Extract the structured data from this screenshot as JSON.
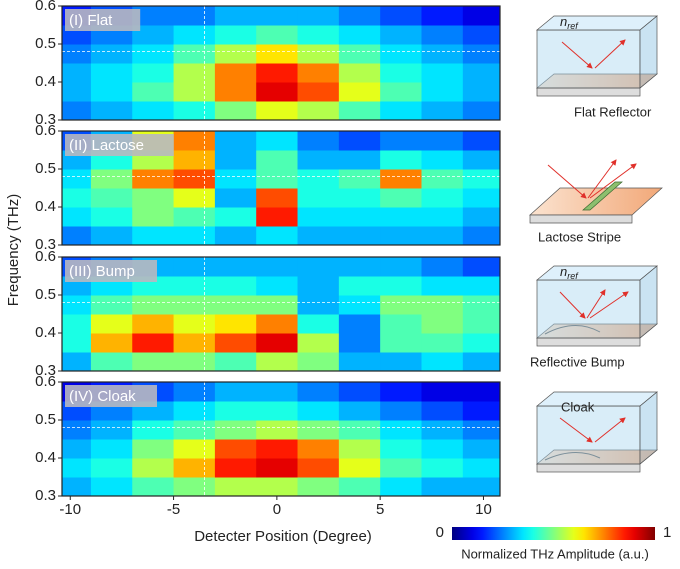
{
  "chart_data": [
    {
      "type": "heatmap",
      "title": "(I) Flat",
      "ylabel": "Frequency (THz)",
      "x": [
        -10,
        -8,
        -6,
        -4,
        -2,
        0,
        2,
        4,
        6,
        8,
        10
      ],
      "y": [
        0.325,
        0.375,
        0.425,
        0.475,
        0.525,
        0.575
      ],
      "z": [
        [
          0.25,
          0.3,
          0.35,
          0.4,
          0.5,
          0.6,
          0.55,
          0.45,
          0.35,
          0.3,
          0.25
        ],
        [
          0.3,
          0.35,
          0.45,
          0.55,
          0.75,
          0.9,
          0.8,
          0.6,
          0.45,
          0.35,
          0.3
        ],
        [
          0.3,
          0.35,
          0.4,
          0.55,
          0.75,
          0.85,
          0.75,
          0.55,
          0.4,
          0.35,
          0.3
        ],
        [
          0.25,
          0.3,
          0.35,
          0.45,
          0.55,
          0.65,
          0.55,
          0.45,
          0.35,
          0.3,
          0.25
        ],
        [
          0.2,
          0.25,
          0.3,
          0.35,
          0.4,
          0.45,
          0.4,
          0.35,
          0.3,
          0.25,
          0.2
        ],
        [
          0.15,
          0.2,
          0.25,
          0.25,
          0.3,
          0.3,
          0.3,
          0.25,
          0.2,
          0.15,
          0.1
        ]
      ],
      "xlim": [
        -10.4,
        10.8
      ],
      "ylim": [
        0.3,
        0.6
      ],
      "yticks": [
        0.3,
        0.4,
        0.5,
        0.6
      ],
      "zlim": [
        0,
        1
      ],
      "colormap": "jet",
      "vline": -3.5,
      "hline": 0.48
    },
    {
      "type": "heatmap",
      "title": "(II) Lactose",
      "x": [
        -10,
        -8,
        -6,
        -4,
        -2,
        0,
        2,
        4,
        6,
        8,
        10
      ],
      "y": [
        0.325,
        0.375,
        0.425,
        0.475,
        0.525,
        0.575
      ],
      "z": [
        [
          0.25,
          0.3,
          0.35,
          0.35,
          0.3,
          0.35,
          0.3,
          0.3,
          0.3,
          0.3,
          0.25
        ],
        [
          0.35,
          0.4,
          0.5,
          0.45,
          0.4,
          0.85,
          0.35,
          0.35,
          0.35,
          0.35,
          0.3
        ],
        [
          0.4,
          0.45,
          0.5,
          0.6,
          0.3,
          0.8,
          0.4,
          0.4,
          0.45,
          0.4,
          0.35
        ],
        [
          0.35,
          0.5,
          0.75,
          0.8,
          0.35,
          0.45,
          0.4,
          0.45,
          0.75,
          0.45,
          0.4
        ],
        [
          0.3,
          0.4,
          0.55,
          0.7,
          0.3,
          0.45,
          0.3,
          0.3,
          0.4,
          0.35,
          0.3
        ],
        [
          0.2,
          0.3,
          0.6,
          0.75,
          0.3,
          0.35,
          0.25,
          0.2,
          0.25,
          0.25,
          0.2
        ]
      ],
      "xlim": [
        -10.4,
        10.8
      ],
      "ylim": [
        0.3,
        0.6
      ],
      "yticks": [
        0.3,
        0.4,
        0.5,
        0.6
      ],
      "zlim": [
        0,
        1
      ],
      "colormap": "jet",
      "vline": -3.5,
      "hline": 0.48
    },
    {
      "type": "heatmap",
      "title": "(III) Bump",
      "x": [
        -10,
        -8,
        -6,
        -4,
        -2,
        0,
        2,
        4,
        6,
        8,
        10
      ],
      "y": [
        0.325,
        0.375,
        0.425,
        0.475,
        0.525,
        0.575
      ],
      "z": [
        [
          0.3,
          0.45,
          0.5,
          0.5,
          0.45,
          0.55,
          0.5,
          0.3,
          0.3,
          0.35,
          0.3
        ],
        [
          0.4,
          0.7,
          0.85,
          0.7,
          0.8,
          0.9,
          0.55,
          0.25,
          0.45,
          0.45,
          0.4
        ],
        [
          0.4,
          0.6,
          0.7,
          0.6,
          0.65,
          0.75,
          0.4,
          0.25,
          0.45,
          0.5,
          0.45
        ],
        [
          0.35,
          0.45,
          0.5,
          0.5,
          0.5,
          0.5,
          0.3,
          0.35,
          0.5,
          0.5,
          0.45
        ],
        [
          0.3,
          0.35,
          0.4,
          0.4,
          0.4,
          0.35,
          0.3,
          0.4,
          0.4,
          0.35,
          0.35
        ],
        [
          0.2,
          0.25,
          0.3,
          0.3,
          0.3,
          0.3,
          0.3,
          0.3,
          0.3,
          0.25,
          0.2
        ]
      ],
      "xlim": [
        -10.4,
        10.8
      ],
      "ylim": [
        0.3,
        0.6
      ],
      "yticks": [
        0.3,
        0.4,
        0.5,
        0.6
      ],
      "zlim": [
        0,
        1
      ],
      "colormap": "jet",
      "vline": -3.5,
      "hline": 0.48
    },
    {
      "type": "heatmap",
      "title": "(IV) Cloak",
      "xlabel": "Detecter Position (Degree)",
      "x": [
        -10,
        -8,
        -6,
        -4,
        -2,
        0,
        2,
        4,
        6,
        8,
        10
      ],
      "y": [
        0.325,
        0.375,
        0.425,
        0.475,
        0.525,
        0.575
      ],
      "z": [
        [
          0.3,
          0.35,
          0.45,
          0.5,
          0.55,
          0.55,
          0.5,
          0.45,
          0.35,
          0.3,
          0.3
        ],
        [
          0.35,
          0.4,
          0.55,
          0.7,
          0.85,
          0.9,
          0.8,
          0.6,
          0.45,
          0.4,
          0.35
        ],
        [
          0.3,
          0.35,
          0.5,
          0.6,
          0.8,
          0.85,
          0.75,
          0.55,
          0.4,
          0.35,
          0.3
        ],
        [
          0.25,
          0.3,
          0.4,
          0.45,
          0.5,
          0.55,
          0.5,
          0.45,
          0.35,
          0.3,
          0.25
        ],
        [
          0.2,
          0.25,
          0.3,
          0.35,
          0.4,
          0.4,
          0.35,
          0.3,
          0.25,
          0.2,
          0.15
        ],
        [
          0.1,
          0.15,
          0.2,
          0.25,
          0.3,
          0.3,
          0.25,
          0.2,
          0.15,
          0.1,
          0.1
        ]
      ],
      "xlim": [
        -10.4,
        10.8
      ],
      "ylim": [
        0.3,
        0.6
      ],
      "yticks": [
        0.3,
        0.4,
        0.5,
        0.6
      ],
      "xticks": [
        -10,
        -5,
        0,
        5,
        10
      ],
      "zlim": [
        0,
        1
      ],
      "zticks": [
        0,
        1
      ],
      "colorbar_label": "Normalized THz Amplitude (a.u.)",
      "colormap": "jet",
      "vline": -3.5,
      "hline": 0.48
    }
  ],
  "diagrams": [
    {
      "index": {
        "base": "n",
        "sub": "ref"
      },
      "label": "Flat Reflector"
    },
    {
      "label": "Lactose Stripe"
    },
    {
      "index": {
        "base": "n",
        "sub": "ref"
      },
      "label": "Reflective Bump"
    },
    {
      "label": "Cloak"
    }
  ]
}
